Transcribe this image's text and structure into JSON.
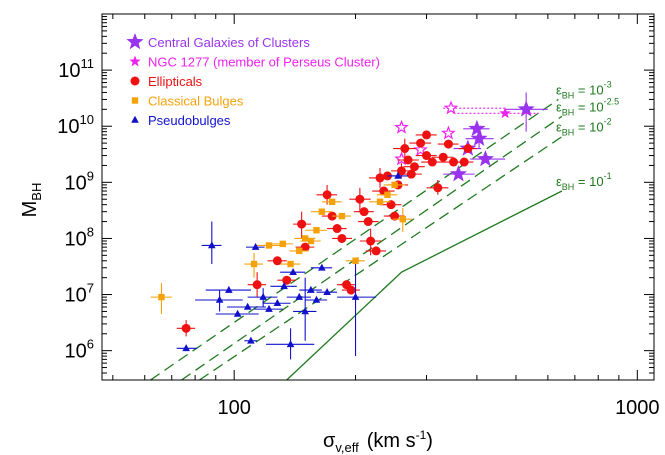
{
  "chart_data": {
    "type": "scatter",
    "xlabel_main": "σ",
    "xlabel_sub": "v,eff",
    "xlabel_units": "(km s",
    "xlabel_units_sup": "-1",
    "xlabel_units_end": ")",
    "ylabel_main": "M",
    "ylabel_sub": "BH",
    "x_scale": "log",
    "y_scale": "log",
    "xlim": [
      47,
      1100
    ],
    "ylim": [
      300000,
      1000000000000
    ],
    "x_ticks": [
      {
        "value": 100,
        "label": "100"
      },
      {
        "value": 1000,
        "label": "1000"
      }
    ],
    "y_ticks": [
      {
        "value": 1000000,
        "base": "10",
        "exp": "6"
      },
      {
        "value": 10000000,
        "base": "10",
        "exp": "7"
      },
      {
        "value": 100000000,
        "base": "10",
        "exp": "8"
      },
      {
        "value": 1000000000,
        "base": "10",
        "exp": "9"
      },
      {
        "value": 10000000000,
        "base": "10",
        "exp": "10"
      },
      {
        "value": 100000000000,
        "base": "10",
        "exp": "11"
      }
    ],
    "legend_position": "top-left",
    "colors": {
      "central": "#9933ee",
      "ngc1277": "#ee22ee",
      "ellipticals": "#ee1111",
      "bulges": "#f5a20a",
      "pseudobulges": "#1111cc",
      "lines": "#1f7a1f"
    },
    "legend": [
      {
        "key": "central",
        "label": "Central Galaxies of Clusters",
        "marker": "star-big"
      },
      {
        "key": "ngc1277",
        "label": "NGC 1277 (member of Perseus Cluster)",
        "marker": "star-small"
      },
      {
        "key": "ellipticals",
        "label": "Ellipticals",
        "marker": "circle"
      },
      {
        "key": "bulges",
        "label": "Classical Bulges",
        "marker": "square"
      },
      {
        "key": "pseudobulges",
        "label": "Pseudobulges",
        "marker": "triangle"
      }
    ],
    "lines": [
      {
        "eps": "-3",
        "prefix": "ε",
        "sub": "BH",
        "eq": " = 10",
        "style": "dashed",
        "points": [
          [
            62,
            300000
          ],
          [
            637,
            30000000000
          ]
        ]
      },
      {
        "eps": "-2.5",
        "prefix": "ε",
        "sub": "BH",
        "eq": " = 10",
        "style": "dashed",
        "points": [
          [
            74,
            300000
          ],
          [
            650,
            15000000000
          ]
        ]
      },
      {
        "eps": "-2",
        "prefix": "ε",
        "sub": "BH",
        "eq": " = 10",
        "style": "dashed",
        "points": [
          [
            82,
            300000
          ],
          [
            650,
            6500000000
          ]
        ]
      },
      {
        "eps": "-1",
        "prefix": "ε",
        "sub": "BH",
        "eq": " = 10",
        "style": "solid",
        "points": [
          [
            135,
            300000
          ],
          [
            260,
            25000000
          ],
          [
            650,
            700000000
          ]
        ]
      }
    ],
    "series": [
      {
        "key": "central",
        "marker": "star-big",
        "points": [
          {
            "x": 530,
            "y": 20000000000,
            "xerr": [
              470,
              600
            ],
            "yerr": [
              8000000000,
              40000000000
            ]
          },
          {
            "x": 400,
            "y": 9000000000,
            "xerr": [
              370,
              430
            ]
          },
          {
            "x": 405,
            "y": 6000000000,
            "xerr": [
              375,
              440
            ],
            "yerr": [
              4000000000,
              8000000000
            ]
          },
          {
            "x": 380,
            "y": 4000000000,
            "xerr": [
              350,
              410
            ]
          },
          {
            "x": 420,
            "y": 2600000000,
            "xerr": [
              385,
              470
            ]
          },
          {
            "x": 360,
            "y": 1400000000,
            "xerr": [
              330,
              395
            ]
          }
        ]
      },
      {
        "key": "ngc1277",
        "marker": "star-small",
        "points": [
          {
            "x": 470,
            "y": 17000000000,
            "xerr": [
              350,
              570
            ]
          },
          {
            "x": 345,
            "y": 21000000000,
            "xerr": [
              330,
              470
            ]
          },
          {
            "x": 260,
            "y": 9500000000
          },
          {
            "x": 340,
            "y": 7500000000
          },
          {
            "x": 290,
            "y": 3800000000
          },
          {
            "x": 260,
            "y": 2600000000
          }
        ]
      },
      {
        "key": "ellipticals",
        "points": [
          {
            "x": 76,
            "y": 2500000,
            "xerr": [
              72,
              80
            ],
            "yerr": [
              1800000,
              3500000
            ]
          },
          {
            "x": 114,
            "y": 15000000,
            "xerr": [
              108,
              120
            ],
            "yerr": [
              9000000,
              25000000
            ]
          },
          {
            "x": 128,
            "y": 40000000,
            "xerr": [
              121,
              135
            ]
          },
          {
            "x": 135,
            "y": 18000000,
            "xerr": [
              128,
              142
            ]
          },
          {
            "x": 147,
            "y": 180000000,
            "xerr": [
              140,
              155
            ],
            "yerr": [
              100000000,
              300000000
            ]
          },
          {
            "x": 150,
            "y": 70000000,
            "xerr": [
              142,
              158
            ]
          },
          {
            "x": 170,
            "y": 600000000,
            "xerr": [
              160,
              180
            ],
            "yerr": [
              400000000,
              900000000
            ]
          },
          {
            "x": 175,
            "y": 250000000,
            "xerr": [
              165,
              185
            ]
          },
          {
            "x": 180,
            "y": 150000000,
            "xerr": [
              170,
              190
            ]
          },
          {
            "x": 185,
            "y": 100000000,
            "xerr": [
              175,
              196
            ]
          },
          {
            "x": 190,
            "y": 15000000,
            "xerr": [
              180,
              200
            ]
          },
          {
            "x": 195,
            "y": 12000000,
            "xerr": [
              185,
              205
            ]
          },
          {
            "x": 205,
            "y": 500000000,
            "xerr": [
              193,
              218
            ],
            "yerr": [
              300000000,
              800000000
            ]
          },
          {
            "x": 210,
            "y": 300000000,
            "xerr": [
              198,
              222
            ]
          },
          {
            "x": 215,
            "y": 200000000,
            "xerr": [
              203,
              228
            ]
          },
          {
            "x": 218,
            "y": 90000000,
            "xerr": [
              205,
              232
            ],
            "yerr": [
              50000000,
              150000000
            ]
          },
          {
            "x": 225,
            "y": 60000000,
            "xerr": [
              212,
              238
            ]
          },
          {
            "x": 230,
            "y": 1200000000,
            "xerr": [
              216,
              245
            ],
            "yerr": [
              800000000,
              1800000000
            ]
          },
          {
            "x": 235,
            "y": 700000000,
            "xerr": [
              220,
              250
            ]
          },
          {
            "x": 245,
            "y": 400000000,
            "xerr": [
              230,
              260
            ]
          },
          {
            "x": 250,
            "y": 250000000,
            "xerr": [
              235,
              265
            ]
          },
          {
            "x": 255,
            "y": 900000000,
            "xerr": [
              240,
              270
            ]
          },
          {
            "x": 260,
            "y": 1600000000,
            "xerr": [
              245,
              275
            ],
            "yerr": [
              1200000000,
              2200000000
            ]
          },
          {
            "x": 265,
            "y": 4000000000,
            "xerr": [
              248,
              282
            ],
            "yerr": [
              2500000000,
              6000000000
            ]
          },
          {
            "x": 270,
            "y": 2500000000,
            "xerr": [
              254,
              287
            ]
          },
          {
            "x": 280,
            "y": 1900000000,
            "xerr": [
              263,
              297
            ]
          },
          {
            "x": 290,
            "y": 5000000000,
            "xerr": [
              272,
              308
            ]
          },
          {
            "x": 300,
            "y": 3000000000,
            "xerr": [
              282,
              318
            ]
          },
          {
            "x": 310,
            "y": 2300000000,
            "xerr": [
              291,
              330
            ]
          },
          {
            "x": 320,
            "y": 800000000,
            "xerr": [
              300,
              340
            ],
            "yerr": [
              600000000,
              1100000000
            ]
          },
          {
            "x": 330,
            "y": 2800000000,
            "xerr": [
              310,
              350
            ]
          },
          {
            "x": 340,
            "y": 4800000000,
            "xerr": [
              320,
              360
            ]
          },
          {
            "x": 350,
            "y": 2300000000,
            "xerr": [
              330,
              370
            ]
          },
          {
            "x": 300,
            "y": 7000000000,
            "xerr": [
              282,
              318
            ]
          },
          {
            "x": 275,
            "y": 1400000000,
            "xerr": [
              258,
              292
            ]
          },
          {
            "x": 240,
            "y": 1300000000,
            "xerr": [
              225,
              255
            ]
          },
          {
            "x": 380,
            "y": 4000000000,
            "xerr": [
              360,
              400
            ]
          },
          {
            "x": 372,
            "y": 2300000000,
            "xerr": [
              352,
              392
            ]
          }
        ]
      },
      {
        "key": "bulges",
        "points": [
          {
            "x": 66,
            "y": 9000000,
            "xerr": [
              62,
              70
            ],
            "yerr": [
              4500000,
              16000000
            ]
          },
          {
            "x": 112,
            "y": 35000000,
            "xerr": [
              106,
              118
            ],
            "yerr": [
              20000000,
              55000000
            ]
          },
          {
            "x": 122,
            "y": 75000000,
            "xerr": [
              114,
              130
            ]
          },
          {
            "x": 132,
            "y": 80000000,
            "xerr": [
              124,
              140
            ]
          },
          {
            "x": 138,
            "y": 35000000,
            "xerr": [
              130,
              146
            ]
          },
          {
            "x": 145,
            "y": 60000000,
            "xerr": [
              137,
              153
            ]
          },
          {
            "x": 150,
            "y": 100000000,
            "xerr": [
              141,
              159
            ]
          },
          {
            "x": 155,
            "y": 90000000,
            "xerr": [
              146,
              164
            ]
          },
          {
            "x": 160,
            "y": 140000000,
            "xerr": [
              150,
              170
            ]
          },
          {
            "x": 165,
            "y": 300000000,
            "xerr": [
              155,
              175
            ]
          },
          {
            "x": 175,
            "y": 450000000,
            "xerr": [
              165,
              185
            ]
          },
          {
            "x": 185,
            "y": 250000000,
            "xerr": [
              175,
              195
            ]
          },
          {
            "x": 200,
            "y": 40000000,
            "xerr": [
              189,
              211
            ]
          },
          {
            "x": 230,
            "y": 450000000,
            "xerr": [
              216,
              244
            ]
          },
          {
            "x": 240,
            "y": 600000000,
            "xerr": [
              226,
              254
            ]
          },
          {
            "x": 250,
            "y": 900000000,
            "xerr": [
              235,
              265
            ]
          },
          {
            "x": 262,
            "y": 220000000,
            "xerr": [
              247,
              277
            ],
            "yerr": [
              130000000,
              350000000
            ]
          }
        ]
      },
      {
        "key": "pseudobulges",
        "points": [
          {
            "x": 76,
            "y": 1100000,
            "xerr": [
              72,
              81
            ]
          },
          {
            "x": 88,
            "y": 75000000,
            "xerr": [
              83,
              93
            ],
            "yerr": [
              35000000,
              200000000
            ]
          },
          {
            "x": 92,
            "y": 8000000,
            "xerr": [
              80,
              105
            ],
            "yerr": [
              5000000,
              12000000
            ]
          },
          {
            "x": 97,
            "y": 12000000,
            "xerr": [
              85,
              110
            ]
          },
          {
            "x": 102,
            "y": 4500000,
            "xerr": [
              90,
              115
            ]
          },
          {
            "x": 108,
            "y": 6000000,
            "xerr": [
              96,
              120
            ]
          },
          {
            "x": 110,
            "y": 1500000,
            "xerr": [
              106,
              114
            ]
          },
          {
            "x": 113,
            "y": 70000000,
            "xerr": [
              107,
              119
            ]
          },
          {
            "x": 118,
            "y": 9000000,
            "xerr": [
              108,
              128
            ],
            "yerr": [
              6000000,
              13000000
            ]
          },
          {
            "x": 122,
            "y": 5500000,
            "xerr": [
              112,
              132
            ]
          },
          {
            "x": 128,
            "y": 7000000,
            "xerr": [
              118,
              138
            ]
          },
          {
            "x": 133,
            "y": 14000000,
            "xerr": [
              123,
              143
            ]
          },
          {
            "x": 138,
            "y": 1300000,
            "xerr": [
              120,
              158
            ],
            "yerr": [
              700000,
              2500000
            ]
          },
          {
            "x": 140,
            "y": 25000000,
            "xerr": [
              130,
              150
            ]
          },
          {
            "x": 145,
            "y": 9000000,
            "xerr": [
              135,
              155
            ]
          },
          {
            "x": 150,
            "y": 5000000,
            "xerr": [
              140,
              160
            ],
            "yerr": [
              1500000,
              20000000
            ]
          },
          {
            "x": 155,
            "y": 12000000,
            "xerr": [
              145,
              165
            ]
          },
          {
            "x": 160,
            "y": 8000000,
            "xerr": [
              150,
              170
            ]
          },
          {
            "x": 165,
            "y": 30000000,
            "xerr": [
              155,
              175
            ]
          },
          {
            "x": 170,
            "y": 11000000,
            "xerr": [
              160,
              180
            ]
          },
          {
            "x": 200,
            "y": 9000000,
            "xerr": [
              180,
              225
            ],
            "yerr": [
              800000,
              35000000
            ]
          },
          {
            "x": 255,
            "y": 1300000000,
            "xerr": [
              240,
              270
            ]
          }
        ]
      }
    ]
  }
}
